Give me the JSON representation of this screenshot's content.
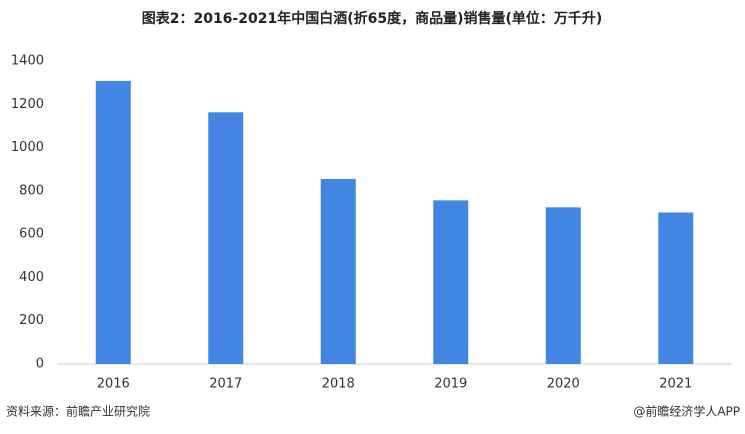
{
  "chart_data": {
    "type": "bar",
    "title": "图表2：2016-2021年中国白酒(折65度，商品量)销售量(单位：万千升)",
    "categories": [
      "2016",
      "2017",
      "2018",
      "2019",
      "2020",
      "2021"
    ],
    "values": [
      1308,
      1163,
      855,
      756,
      724,
      700
    ],
    "color": "#4285e3",
    "ylim": [
      0,
      1400
    ],
    "yticks": [
      0,
      200,
      400,
      600,
      800,
      1000,
      1200,
      1400
    ],
    "grid": false,
    "source": "资料来源：前瞻产业研究院",
    "credit": "@前瞻经济学人APP"
  }
}
